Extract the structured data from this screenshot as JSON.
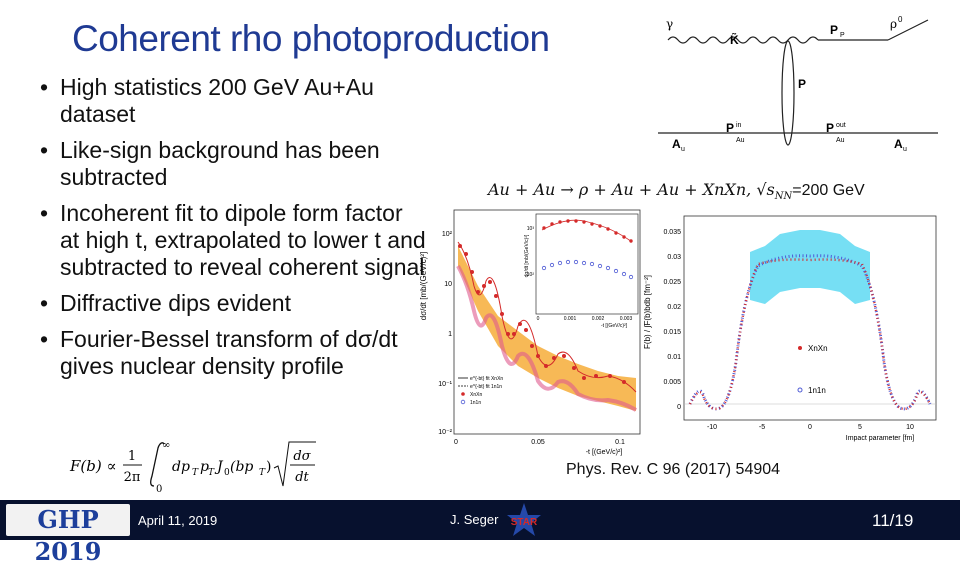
{
  "slide": {
    "title": "Coherent rho photoproduction",
    "bullets": [
      {
        "text": "High statistics 200 GeV Au+Au dataset"
      },
      {
        "text": "Like-sign background has been subtracted"
      },
      {
        "text": "Incoherent fit to dipole form factor at high t, extrapolated to lower t and subtracted to reveal coherent signal"
      },
      {
        "text": "Diffractive dips evident"
      },
      {
        "text": "Fourier-Bessel transform of dσ/dt gives nuclear density profile"
      }
    ],
    "bullet_symbol": "•",
    "reference": "Phys. Rev. C 96 (2017) 54904"
  },
  "feynman": {
    "labels": {
      "gamma": "γ",
      "kbar": "K̃",
      "pp": "P",
      "pp_sub": "P",
      "rho": "ρ",
      "rho_sup": "0",
      "p": "P",
      "a_left": "A",
      "a_left_sub": "u",
      "pin": "P",
      "pin_sup": "in",
      "pin_sub": "Au",
      "pout": "P",
      "pout_sup": "out",
      "pout_sub": "Au",
      "a_right": "A",
      "a_right_sub": "u"
    }
  },
  "equation": {
    "reaction": "Au + Au → ρ + Au + Au + XnXn,",
    "energy_lhs": "√s",
    "energy_sub": "NN",
    "energy_rhs": "=200 GeV"
  },
  "formula": {
    "lhs": "F(b) ∝",
    "frac_num": "1",
    "frac_den": "2π",
    "integral_lower": "0",
    "integral_upper": "∞",
    "integrand": "dp",
    "sub_t": "T",
    "p_symbol": "p",
    "bessel": "J",
    "bessel_sub": "0",
    "bessel_arg": "(bp",
    "bessel_close": ")",
    "root_num": "dσ",
    "root_den": "dt"
  },
  "left_plot": {
    "ylabel": "dσ/dt [mb/(GeV/c)²]",
    "xlabel": "-t [(GeV/c)²]",
    "yticks": [
      "10²",
      "10",
      "1",
      "10⁻¹",
      "10⁻²"
    ],
    "xticks": [
      "0",
      "0.05",
      "0.1"
    ],
    "legend": [
      {
        "label": "e^{-bt} fit XnXn",
        "color": "#000000"
      },
      {
        "label": "e^{-bt} fit 1n1n",
        "color": "#000000"
      },
      {
        "label": "XnXn",
        "color": "#d42a2a"
      },
      {
        "label": "1n1n",
        "color": "#4f5bd5"
      }
    ],
    "inset": {
      "ylabel": "dσ/dt [mb/(GeV/c)²]",
      "xlabel": "-t [(GeV/c)²]",
      "xticks": [
        "0",
        "0.001",
        "0.002",
        "0.003"
      ],
      "yticks": [
        "10³",
        "10²"
      ]
    }
  },
  "right_plot": {
    "ylabel": "F(b) / ∫F(b)bdb [fm⁻²]",
    "xlabel": "Impact parameter [fm]",
    "yticks": [
      "0.035",
      "0.03",
      "0.025",
      "0.02",
      "0.015",
      "0.01",
      "0.005",
      "0"
    ],
    "xticks": [
      "-10",
      "-5",
      "0",
      "5",
      "10"
    ],
    "legend": [
      {
        "label": "XnXn",
        "color": "#d42a2a"
      },
      {
        "label": "1n1n",
        "color": "#4f5bd5"
      }
    ]
  },
  "footer": {
    "logo": "GHP 2019",
    "date": "April 11, 2019",
    "author": "J. Seger",
    "badge": "STAR",
    "page": "11/19"
  }
}
